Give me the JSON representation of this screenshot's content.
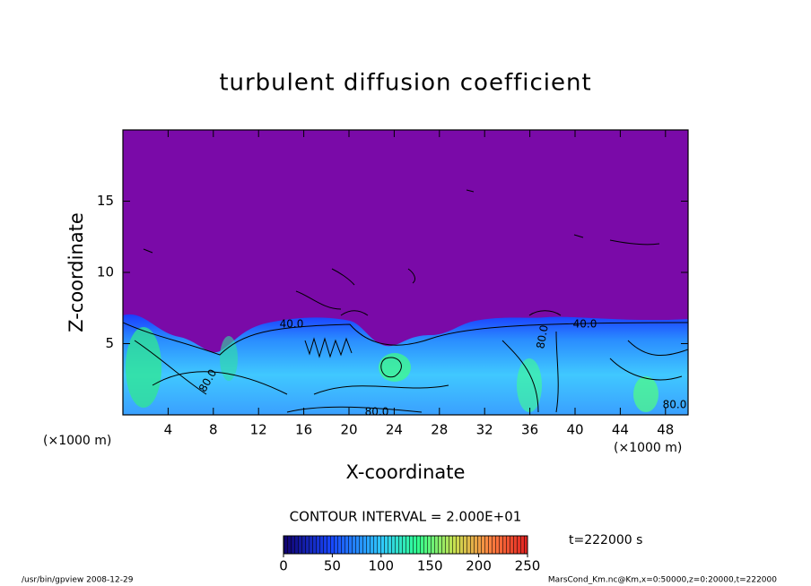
{
  "chart_data": {
    "type": "contour",
    "title": "turbulent diffusion coefficient",
    "x_label": "X-coordinate",
    "y_label": "Z-coordinate",
    "x_unit": "(×1000 m)",
    "xlim": [
      0,
      50
    ],
    "ylim": [
      0,
      20
    ],
    "xticks": [
      4,
      8,
      12,
      16,
      20,
      24,
      28,
      32,
      36,
      40,
      44,
      48
    ],
    "yticks": [
      5,
      10,
      15
    ],
    "contour_labels": [
      "40.0",
      "80.0",
      "40.0",
      "80.0",
      "80.0",
      "80.0"
    ],
    "contour_interval": "CONTOUR INTERVAL = 2.000E+01",
    "colorbar_lim": [
      0,
      250
    ],
    "colorbar_ticks": [
      0,
      50,
      100,
      150,
      200,
      250
    ],
    "time_label": "t=222000 s",
    "footer_left": "/usr/bin/gpview   2008-12-29",
    "footer_right": "MarsCond_Km.nc@Km,x=0:50000,z=0:20000,t=222000"
  }
}
